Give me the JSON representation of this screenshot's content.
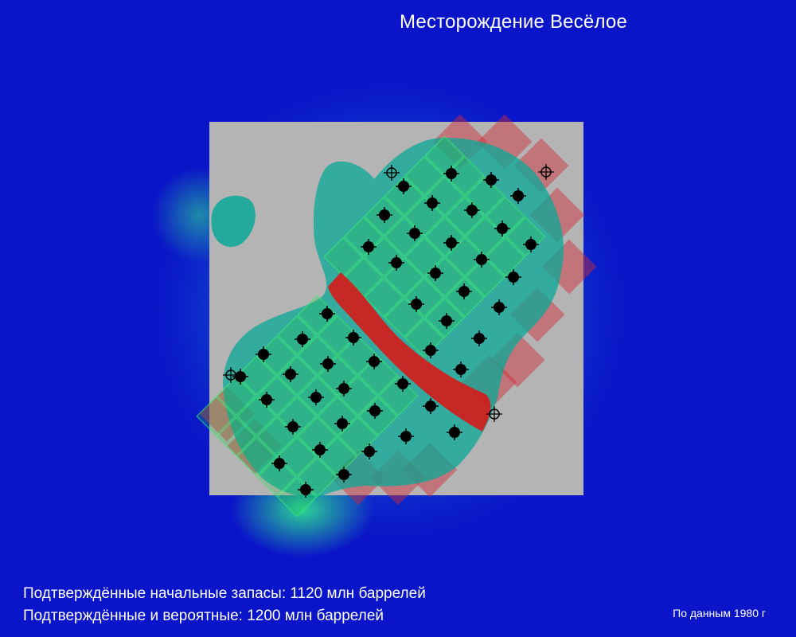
{
  "map": {
    "title": "Месторождение Весёлое",
    "stats": {
      "proven": "Подтверждённые начальные запасы: 1120 млн баррелей",
      "proven_probable": "Подтверждённые и вероятные: 1200 млн баррелей"
    },
    "source_note": "По данным 1980 г",
    "colors": {
      "background": "#0a14c8",
      "survey_area": "#b4b4b4",
      "reservoir": "#0aa898",
      "lease_red": "#d22a35",
      "fault": "#e01010",
      "grid_green": "#1ec83c"
    },
    "icons": {
      "producing_well": "black-well-marker-icon",
      "exploration_well": "crosshair-well-icon"
    }
  }
}
